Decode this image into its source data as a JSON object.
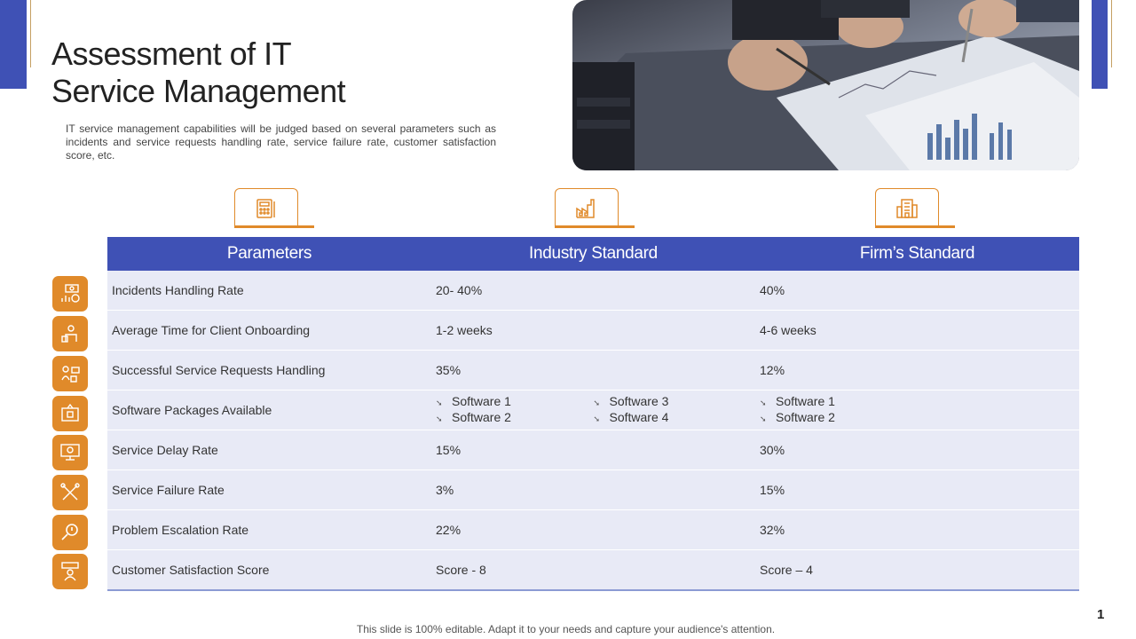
{
  "slide": {
    "title_line1": "Assessment of IT",
    "title_line2": "Service Management",
    "intro": "IT service management capabilities will be judged based on several parameters such as incidents and service requests handling rate, service failure rate, customer satisfaction score, etc.",
    "page_number": "1",
    "footer": "This slide is 100% editable. Adapt it to your needs and capture your audience's attention."
  },
  "colors": {
    "accent_blue": "#3f51b5",
    "accent_orange": "#e08a2a",
    "row_bg": "#e8eaf6"
  },
  "column_icons": [
    "calculator-icon",
    "factory-icon",
    "office-building-icon"
  ],
  "table": {
    "headers": [
      "Parameters",
      "Industry Standard",
      "Firm’s Standard"
    ],
    "rows": [
      {
        "icon": "money-chart-icon",
        "parameter": "Incidents Handling Rate",
        "industry": "20- 40%",
        "firm": "40%"
      },
      {
        "icon": "onboarding-icon",
        "parameter": "Average Time for Client Onboarding",
        "industry": "1-2 weeks",
        "firm": "4-6 weeks"
      },
      {
        "icon": "support-call-icon",
        "parameter": "Successful Service Requests Handling",
        "industry": "35%",
        "firm": "12%"
      },
      {
        "icon": "software-package-icon",
        "parameter": "Software Packages Available",
        "industry_list": [
          "Software 1",
          "Software 2",
          "Software 3",
          "Software 4"
        ],
        "firm_list": [
          "Software 1",
          "Software 2"
        ]
      },
      {
        "icon": "monitor-icon",
        "parameter": "Service Delay Rate",
        "industry": "15%",
        "firm": "30%"
      },
      {
        "icon": "broken-tools-icon",
        "parameter": "Service Failure Rate",
        "industry": "3%",
        "firm": "15%"
      },
      {
        "icon": "magnifier-icon",
        "parameter": "Problem Escalation Rate",
        "industry": "22%",
        "firm": "32%"
      },
      {
        "icon": "rating-person-icon",
        "parameter": "Customer Satisfaction Score",
        "industry": "Score - 8",
        "firm": "Score – 4"
      }
    ]
  }
}
